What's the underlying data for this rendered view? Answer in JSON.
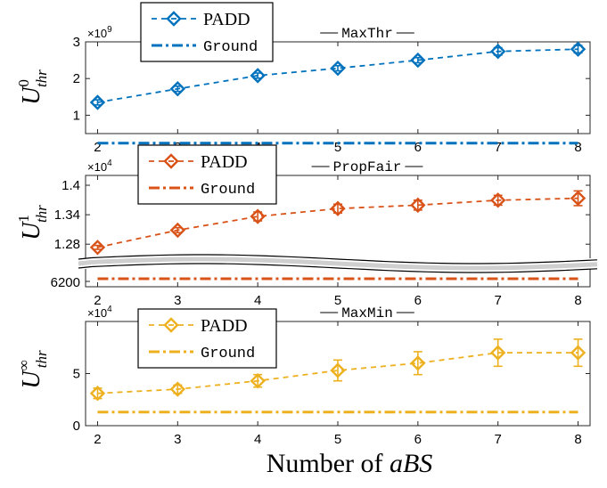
{
  "xlabel": {
    "prefix": "Number of ",
    "italic": "aBS"
  },
  "colors": {
    "maxthr": "#0072BD",
    "propfair": "#D95319",
    "maxmin": "#EDB120",
    "axis": "#262626"
  },
  "chart_data": [
    {
      "id": "maxthr",
      "type": "line",
      "title": "MaxThr",
      "ylabel": {
        "base": "U",
        "sup": "0",
        "sub": "thr"
      },
      "exponent_label": {
        "base": "×10",
        "exp": "9"
      },
      "x": [
        2,
        3,
        4,
        5,
        6,
        7,
        8
      ],
      "xticks": [
        "2",
        "3",
        "4",
        "5",
        "6",
        "7",
        "8"
      ],
      "ylim": [
        0.5,
        3.0
      ],
      "yticks": [
        1,
        2,
        3
      ],
      "ytick_labels": [
        "1",
        "2",
        "3"
      ],
      "series": [
        {
          "name": "PADD",
          "values": [
            1.35,
            1.72,
            2.08,
            2.28,
            2.5,
            2.74,
            2.8
          ],
          "errors": [
            0.07,
            0.07,
            0.07,
            0.07,
            0.07,
            0.1,
            0.1
          ]
        },
        {
          "name": "Ground",
          "values": [
            0.24,
            0.24,
            0.24,
            0.24,
            0.24,
            0.24,
            0.24
          ]
        }
      ]
    },
    {
      "id": "propfair",
      "type": "line",
      "title": "PropFair",
      "ylabel": {
        "base": "U",
        "sup": "1",
        "sub": "thr"
      },
      "exponent_label": {
        "base": "×10",
        "exp": "4"
      },
      "x": [
        2,
        3,
        4,
        5,
        6,
        7,
        8
      ],
      "xticks": [
        "2",
        "3",
        "4",
        "5",
        "6",
        "7",
        "8"
      ],
      "ylim": [
        1.255,
        1.42
      ],
      "yticks": [
        1.28,
        1.34,
        1.4
      ],
      "ytick_labels": [
        "1.28",
        "1.34",
        "1.4"
      ],
      "broken_axis": true,
      "lower_tick_label": "6200",
      "series": [
        {
          "name": "PADD",
          "values": [
            1.2735,
            1.3085,
            1.3365,
            1.3525,
            1.3595,
            1.3695,
            1.3735
          ],
          "errors": [
            0.004,
            0.005,
            0.009,
            0.009,
            0.01,
            0.01,
            0.015
          ]
        },
        {
          "name": "Ground",
          "values": [
            0.62,
            0.62,
            0.62,
            0.62,
            0.62,
            0.62,
            0.62
          ]
        }
      ]
    },
    {
      "id": "maxmin",
      "type": "line",
      "title": "MaxMin",
      "ylabel": {
        "base": "U",
        "sup": "∞",
        "sub": "thr"
      },
      "exponent_label": {
        "base": "×10",
        "exp": "4"
      },
      "x": [
        2,
        3,
        4,
        5,
        6,
        7,
        8
      ],
      "xticks": [
        "2",
        "3",
        "4",
        "5",
        "6",
        "7",
        "8"
      ],
      "ylim": [
        0,
        10
      ],
      "yticks": [
        0,
        5
      ],
      "ytick_labels": [
        "0",
        "5"
      ],
      "series": [
        {
          "name": "PADD",
          "values": [
            3.1,
            3.5,
            4.3,
            5.3,
            6.0,
            7.0,
            7.0
          ],
          "errors": [
            0.5,
            0.4,
            0.6,
            1.0,
            1.1,
            1.3,
            1.3
          ]
        },
        {
          "name": "Ground",
          "values": [
            1.3,
            1.3,
            1.3,
            1.3,
            1.3,
            1.3,
            1.3
          ]
        }
      ]
    }
  ]
}
